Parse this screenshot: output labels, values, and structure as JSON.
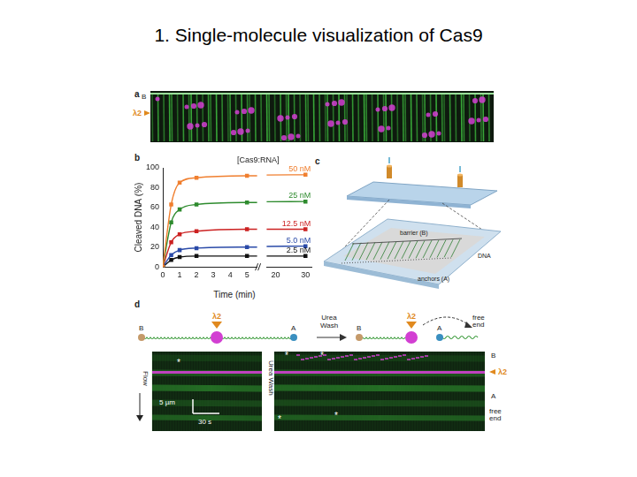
{
  "chart_data": {
    "type": "line",
    "xlabel": "Time (min)",
    "ylabel": "Cleaved DNA (%)",
    "annotations": [
      "[Cas9:RNA]"
    ],
    "x": [
      0,
      0.5,
      1,
      2,
      5,
      30
    ],
    "series": [
      {
        "name": "50 nM",
        "color": "#f07f2f",
        "values": [
          0,
          63,
          85,
          90,
          92,
          93
        ]
      },
      {
        "name": "25 nM",
        "color": "#2e8b2e",
        "values": [
          0,
          45,
          58,
          63,
          65,
          66
        ]
      },
      {
        "name": "12.5 nM",
        "color": "#cc2222",
        "values": [
          0,
          25,
          33,
          36,
          38,
          38
        ]
      },
      {
        "name": "5.0 nM",
        "color": "#2a4aa8",
        "values": [
          0,
          12,
          17,
          19,
          20,
          21
        ]
      },
      {
        "name": "2.5 nM",
        "color": "#111111",
        "values": [
          0,
          7,
          10,
          11,
          11,
          11
        ]
      }
    ],
    "xlim": [
      0,
      32
    ],
    "x_break": [
      5.6,
      17
    ],
    "xticks": [
      0,
      1,
      2,
      3,
      4,
      5,
      20,
      30
    ],
    "ylim": [
      0,
      100
    ],
    "yticks": [
      0,
      20,
      40,
      60,
      80,
      100
    ],
    "grid": false,
    "marker": "square"
  },
  "slide": {
    "title": "1. Single-molecule visualization of Cas9"
  },
  "panel_a": {
    "label": "a",
    "barrier": "B",
    "lambda": "λ2"
  },
  "panel_b": {
    "label": "b"
  },
  "panel_c": {
    "label": "c",
    "barrier": "barrier (B)",
    "dna": "DNA",
    "anchors": "anchors (A)"
  },
  "panel_d": {
    "label": "d",
    "schematic_before": {
      "barrier": "B",
      "lambda": "λ2",
      "anchor": "A"
    },
    "step": "Urea Wash",
    "schematic_after": {
      "barrier": "B",
      "lambda": "λ2",
      "anchor": "A",
      "free_end": "free end"
    },
    "kymo_before": {
      "flow": "Flow",
      "scale_length": "5 µm",
      "scale_time": "30 s",
      "asterisk": "*"
    },
    "kymo_after": {
      "side": "Urea Wash",
      "barrier": "B",
      "lambda": "λ2",
      "anchor": "A",
      "free_end": "free end",
      "asterisk": "*"
    }
  }
}
